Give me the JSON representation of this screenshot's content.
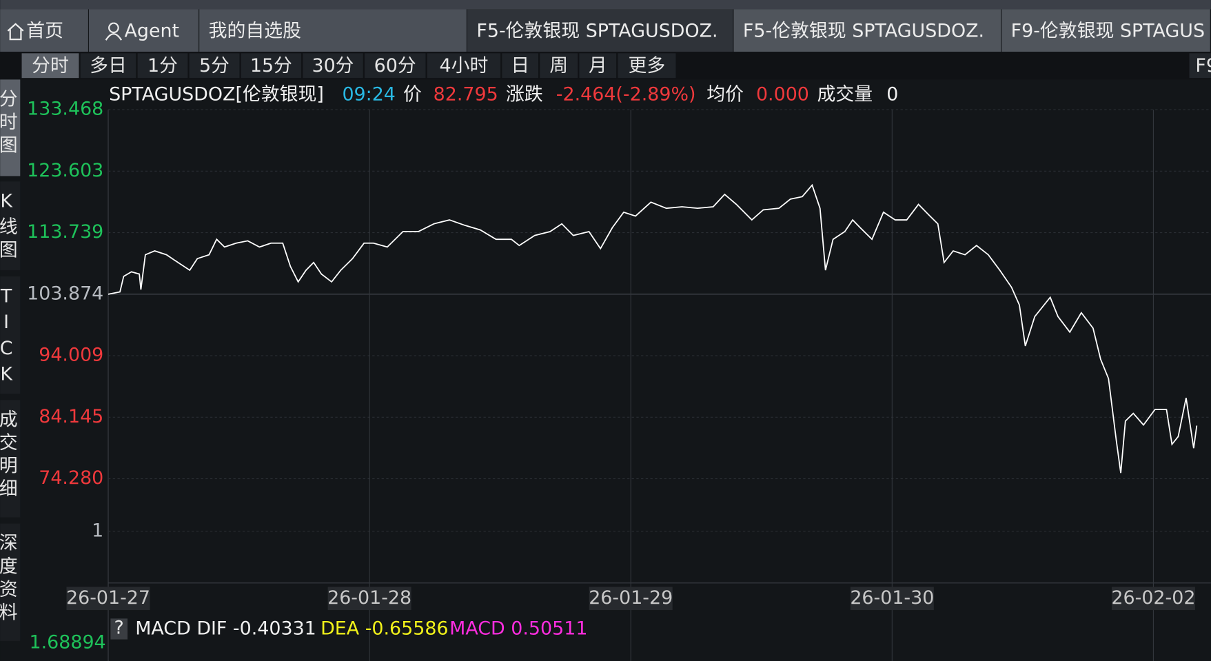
{
  "tabs": [
    "首页",
    "Agent",
    "我的自选股",
    "F5-伦敦银现 SPTAGUSDOZ.",
    "F5-伦敦银现 SPTAGUSDOZ.",
    "F9-伦敦银现 SPTAGUS"
  ],
  "periods": [
    "分时",
    "多日",
    "1分",
    "5分",
    "15分",
    "30分",
    "60分",
    "4小时",
    "日",
    "周",
    "月",
    "更多"
  ],
  "period_right": "F9",
  "side_tabs": [
    "分时图",
    "K线图",
    "TICK",
    "成交明细",
    "深度资料"
  ],
  "quote": {
    "symbol": "SPTAGUSDOZ[伦敦银现]",
    "time": "09:24",
    "price_label": "价",
    "price": "82.795",
    "change_label": "涨跌",
    "change": "-2.464(-2.89%)",
    "avg_label": "均价",
    "avg": "0.000",
    "volume_label": "成交量",
    "volume": "0"
  },
  "chart_data": {
    "type": "line",
    "color": "#ffffff",
    "x": [
      0,
      0.045,
      0.059,
      0.089,
      0.119,
      0.125,
      0.142,
      0.178,
      0.223,
      0.267,
      0.312,
      0.341,
      0.386,
      0.415,
      0.445,
      0.49,
      0.534,
      0.579,
      0.623,
      0.668,
      0.697,
      0.727,
      0.757,
      0.786,
      0.816,
      0.855,
      0.89,
      0.935,
      0.979,
      1.015,
      1.068,
      1.128,
      1.187,
      1.246,
      1.306,
      1.365,
      1.424,
      1.484,
      1.543,
      1.573,
      1.632,
      1.691,
      1.736,
      1.78,
      1.84,
      1.884,
      1.929,
      1.973,
      2.018,
      2.077,
      2.136,
      2.196,
      2.255,
      2.315,
      2.359,
      2.404,
      2.463,
      2.507,
      2.567,
      2.611,
      2.656,
      2.694,
      2.724,
      2.745,
      2.774,
      2.819,
      2.849,
      2.878,
      2.923,
      2.967,
      3.012,
      3.056,
      3.101,
      3.145,
      3.175,
      3.199,
      3.234,
      3.279,
      3.323,
      3.368,
      3.412,
      3.457,
      3.487,
      3.51,
      3.546,
      3.605,
      3.635,
      3.68,
      3.724,
      3.769,
      3.798,
      3.828,
      3.858,
      3.875,
      3.893,
      3.923,
      3.962,
      4.006,
      4.05,
      4.071,
      4.095,
      4.125,
      4.154,
      4.166
    ],
    "values": [
      103.87,
      104.25,
      106.73,
      107.47,
      107.1,
      104.62,
      110.2,
      110.82,
      110.2,
      108.96,
      107.72,
      109.58,
      110.2,
      112.68,
      111.44,
      112.06,
      112.43,
      111.44,
      112.06,
      112.06,
      108.34,
      105.86,
      107.72,
      108.96,
      107.1,
      105.86,
      107.72,
      109.58,
      112.06,
      112.06,
      111.44,
      113.92,
      113.92,
      115.16,
      115.78,
      114.92,
      114.17,
      112.68,
      112.68,
      111.69,
      113.3,
      113.92,
      115.16,
      113.3,
      113.92,
      111.19,
      114.54,
      117.03,
      116.4,
      118.64,
      117.65,
      117.89,
      117.65,
      117.89,
      119.88,
      118.27,
      115.78,
      117.4,
      117.65,
      119.13,
      119.51,
      121.37,
      117.65,
      107.72,
      112.68,
      113.92,
      115.78,
      114.54,
      112.68,
      117.03,
      115.78,
      115.78,
      118.27,
      116.4,
      115.16,
      108.96,
      110.82,
      110.2,
      111.69,
      110.2,
      107.72,
      104.99,
      102.14,
      95.56,
      100.28,
      103.38,
      100.28,
      97.79,
      100.9,
      98.42,
      93.45,
      90.35,
      80.42,
      75.21,
      83.53,
      84.77,
      82.91,
      85.39,
      85.39,
      79.8,
      81.05,
      87.25,
      79.18,
      82.8
    ],
    "xlim": [
      0,
      4.22
    ],
    "xticks": [
      {
        "value": 0,
        "label": "26-01-27"
      },
      {
        "value": 1,
        "label": "26-01-28"
      },
      {
        "value": 2,
        "label": "26-01-29"
      },
      {
        "value": 3,
        "label": "26-01-30"
      },
      {
        "value": 4,
        "label": "26-02-02"
      }
    ],
    "ylim": [
      74.28,
      133.468
    ],
    "yticks": [
      133.468,
      123.603,
      113.739,
      103.874,
      94.009,
      84.145,
      {
        "value": 74.28,
        "label": "74.280"
      }
    ],
    "ytick_colors": [
      "#1ec25a",
      "#1ec25a",
      "#1ec25a",
      "#b8bcc2",
      "#f0393c",
      "#f0393c",
      "#f0393c"
    ],
    "grid": true,
    "volume_yticks": [
      1
    ],
    "macd": {
      "help": "?",
      "dif": "MACD DIF -0.40331",
      "dea": "DEA -0.65586",
      "macd": "MACD 0.50511",
      "axis_label": "1.68894"
    }
  }
}
